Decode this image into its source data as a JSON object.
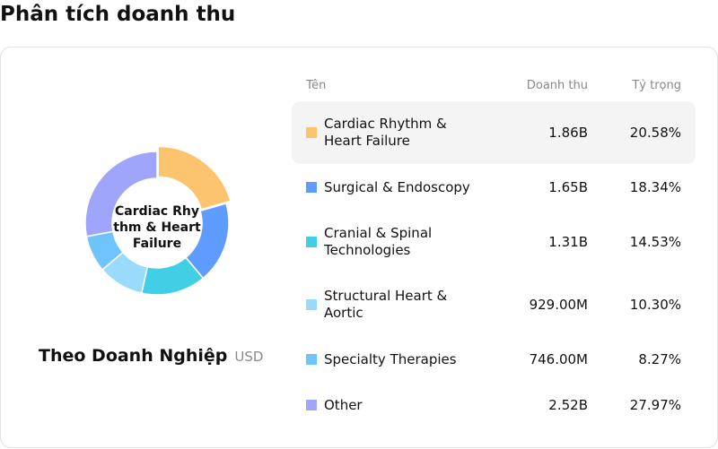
{
  "page": {
    "title": "Phân tích doanh thu"
  },
  "donut": {
    "center_label": "Cardiac Rhythm & Heart Failure",
    "caption": "Theo Doanh Nghiệp",
    "unit": "USD"
  },
  "table": {
    "headers": {
      "name": "Tên",
      "revenue": "Doanh thu",
      "share": "Tỷ trọng"
    },
    "rows": [
      {
        "name": "Cardiac Rhythm & Heart Failure",
        "revenue": "1.86B",
        "share": "20.58%",
        "color": "#FDC470",
        "active": true
      },
      {
        "name": "Surgical & Endoscopy",
        "revenue": "1.65B",
        "share": "18.34%",
        "color": "#5F9CFF",
        "active": false
      },
      {
        "name": "Cranial & Spinal Technologies",
        "revenue": "1.31B",
        "share": "14.53%",
        "color": "#40CFE5",
        "active": false
      },
      {
        "name": "Structural Heart & Aortic",
        "revenue": "929.00M",
        "share": "10.30%",
        "color": "#9ADAFC",
        "active": false
      },
      {
        "name": "Specialty Therapies",
        "revenue": "746.00M",
        "share": "8.27%",
        "color": "#70C4FC",
        "active": false
      },
      {
        "name": "Other",
        "revenue": "2.52B",
        "share": "27.97%",
        "color": "#A0A5FC",
        "active": false
      }
    ]
  },
  "chart_data": {
    "type": "pie",
    "subtype": "donut",
    "title": "Phân tích doanh thu",
    "subtitle": "Theo Doanh Nghiệp (USD)",
    "categories": [
      "Cardiac Rhythm & Heart Failure",
      "Surgical & Endoscopy",
      "Cranial & Spinal Technologies",
      "Structural Heart & Aortic",
      "Specialty Therapies",
      "Other"
    ],
    "values": [
      1860000000.0,
      1650000000.0,
      1310000000.0,
      929000000.0,
      746000000.0,
      2520000000.0
    ],
    "value_labels": [
      "1.86B",
      "1.65B",
      "1.31B",
      "929.00M",
      "746.00M",
      "2.52B"
    ],
    "percentages": [
      20.58,
      18.34,
      14.53,
      10.3,
      8.27,
      27.97
    ],
    "colors": [
      "#FDC470",
      "#5F9CFF",
      "#40CFE5",
      "#9ADAFC",
      "#70C4FC",
      "#A0A5FC"
    ],
    "highlighted": "Cardiac Rhythm & Heart Failure",
    "legend_position": "right (table)"
  }
}
